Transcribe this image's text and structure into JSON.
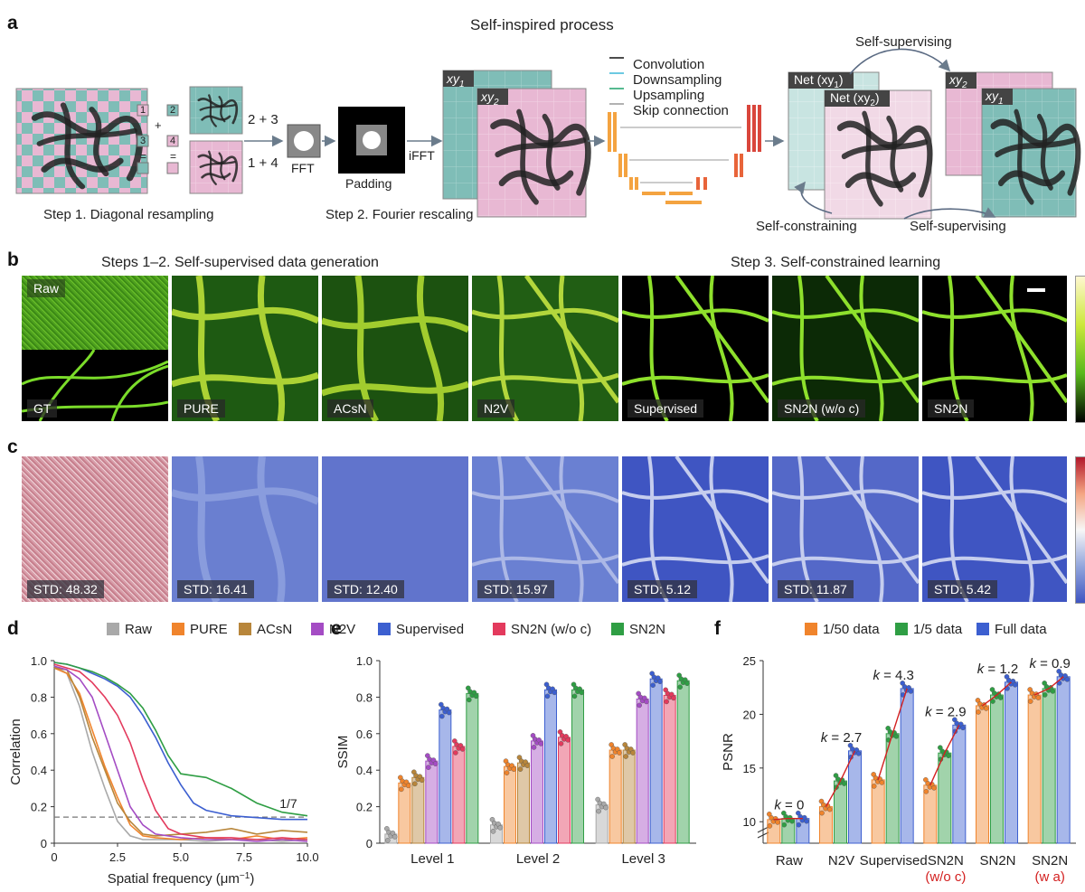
{
  "panel_letters": {
    "a": "a",
    "b": "b",
    "c": "c",
    "d": "d",
    "e": "e",
    "f": "f"
  },
  "panel_a": {
    "title": "Self-inspired process",
    "step1_caption": "Step 1. Diagonal resampling",
    "step2_caption": "Step 2. Fourier rescaling",
    "label_23": "2 + 3",
    "label_14": "1 + 4",
    "fft": "FFT",
    "padding": "Padding",
    "ifft": "iFFT",
    "grid_nums": [
      "1",
      "2",
      "3",
      "4"
    ],
    "plus": "+",
    "eq": "=",
    "xy1": "xy",
    "xy2": "xy",
    "sub1": "1",
    "sub2": "2",
    "net_xy1": "Net (xy",
    "net_xy2": "Net (xy",
    "close_paren": ")",
    "unet_legend": [
      "Convolution",
      "Downsampling",
      "Upsampling",
      "Skip connection"
    ],
    "self_supervising_top": "Self-supervising",
    "self_constraining": "Self-constraining",
    "self_supervising_bottom": "Self-supervising"
  },
  "panel_b": {
    "left_heading": "Steps 1–2. Self-supervised data generation",
    "right_heading": "Step 3. Self-constrained learning",
    "raw_label": "Raw",
    "tiles": [
      "GT",
      "PURE",
      "ACsN",
      "N2V",
      "Supervised",
      "SN2N (w/o c)",
      "SN2N"
    ]
  },
  "panel_c": {
    "std_labels": [
      "STD: 48.32",
      "STD: 16.41",
      "STD: 12.40",
      "STD: 15.97",
      "STD: 5.12",
      "STD: 11.87",
      "STD: 5.42"
    ]
  },
  "legend_methods": [
    {
      "name": "Raw",
      "color": "#a9a9a9"
    },
    {
      "name": "PURE",
      "color": "#f0842c"
    },
    {
      "name": "ACsN",
      "color": "#b8863b"
    },
    {
      "name": "N2V",
      "color": "#a44cc4"
    },
    {
      "name": "Supervised",
      "color": "#3c5fd0"
    },
    {
      "name": "SN2N (w/o c)",
      "color": "#e33a5d"
    },
    {
      "name": "SN2N",
      "color": "#2f9e44"
    }
  ],
  "legend_data": [
    {
      "name": "1/50 data",
      "color": "#f0842c"
    },
    {
      "name": "1/5 data",
      "color": "#2f9e44"
    },
    {
      "name": "Full data",
      "color": "#3c5fd0"
    }
  ],
  "chart_data": [
    {
      "id": "d",
      "type": "line",
      "xlabel": "Spatial frequency  (μm",
      "xlabel_sup": "−1",
      "xlabel_end": ")",
      "ylabel": "Correlation",
      "xlim": [
        0,
        10
      ],
      "ylim": [
        0,
        1
      ],
      "xticks": [
        "0",
        "2.5",
        "5.0",
        "7.5",
        "10.0"
      ],
      "yticks": [
        "0",
        "0.2",
        "0.4",
        "0.6",
        "0.8",
        "1.0"
      ],
      "threshold": 0.143,
      "threshold_label": "1/7",
      "series": [
        {
          "name": "Raw",
          "color": "#a9a9a9",
          "x": [
            0,
            0.5,
            1,
            1.5,
            2,
            2.5,
            3,
            3.5,
            4,
            5,
            6,
            7,
            8,
            9,
            10
          ],
          "y": [
            0.97,
            0.93,
            0.75,
            0.5,
            0.3,
            0.12,
            0.04,
            0.02,
            0.02,
            0.02,
            0.01,
            0.02,
            0.02,
            0.01,
            0.02
          ]
        },
        {
          "name": "PURE",
          "color": "#f0842c",
          "x": [
            0,
            0.5,
            1,
            1.5,
            2,
            2.5,
            3,
            3.5,
            4,
            5,
            6,
            7,
            8,
            9,
            10
          ],
          "y": [
            0.96,
            0.93,
            0.82,
            0.62,
            0.42,
            0.25,
            0.1,
            0.04,
            0.03,
            0.02,
            0.03,
            0.02,
            0.04,
            0.02,
            0.03
          ]
        },
        {
          "name": "ACsN",
          "color": "#b8863b",
          "x": [
            0,
            0.5,
            1,
            1.5,
            2,
            2.5,
            3,
            3.5,
            4,
            5,
            6,
            7,
            8,
            9,
            10
          ],
          "y": [
            0.96,
            0.95,
            0.8,
            0.58,
            0.4,
            0.22,
            0.12,
            0.05,
            0.04,
            0.05,
            0.06,
            0.08,
            0.05,
            0.07,
            0.06
          ]
        },
        {
          "name": "N2V",
          "color": "#a44cc4",
          "x": [
            0,
            0.5,
            1,
            1.5,
            2,
            2.5,
            3,
            3.5,
            4,
            5,
            6,
            7,
            8,
            9,
            10
          ],
          "y": [
            0.97,
            0.95,
            0.9,
            0.8,
            0.6,
            0.4,
            0.2,
            0.1,
            0.05,
            0.03,
            0.02,
            0.02,
            0.01,
            0.02,
            0.01
          ]
        },
        {
          "name": "Supervised",
          "color": "#3c5fd0",
          "x": [
            0,
            0.5,
            1,
            1.5,
            2,
            2.5,
            3,
            3.5,
            4,
            4.5,
            5,
            5.5,
            6,
            7,
            8,
            9,
            10
          ],
          "y": [
            0.99,
            0.98,
            0.96,
            0.93,
            0.9,
            0.86,
            0.8,
            0.7,
            0.58,
            0.44,
            0.32,
            0.22,
            0.18,
            0.15,
            0.14,
            0.13,
            0.13
          ]
        },
        {
          "name": "SN2N (w/o c)",
          "color": "#e33a5d",
          "x": [
            0,
            0.5,
            1,
            1.5,
            2,
            2.5,
            3,
            3.5,
            4,
            4.5,
            5,
            6,
            7,
            8,
            9,
            10
          ],
          "y": [
            0.98,
            0.96,
            0.94,
            0.88,
            0.8,
            0.7,
            0.55,
            0.35,
            0.18,
            0.08,
            0.05,
            0.03,
            0.03,
            0.02,
            0.03,
            0.02
          ]
        },
        {
          "name": "SN2N",
          "color": "#2f9e44",
          "x": [
            0,
            0.5,
            1,
            1.5,
            2,
            2.5,
            3,
            3.5,
            4,
            4.5,
            5,
            5.5,
            6,
            7,
            8,
            9,
            10
          ],
          "y": [
            0.99,
            0.98,
            0.96,
            0.94,
            0.91,
            0.87,
            0.82,
            0.74,
            0.62,
            0.48,
            0.38,
            0.37,
            0.36,
            0.3,
            0.22,
            0.17,
            0.15
          ]
        }
      ]
    },
    {
      "id": "e",
      "type": "bar",
      "ylabel": "SSIM",
      "ylim": [
        0,
        1
      ],
      "yticks": [
        "0",
        "0.2",
        "0.4",
        "0.6",
        "0.8",
        "1.0"
      ],
      "categories": [
        "Level 1",
        "Level 2",
        "Level 3"
      ],
      "series": [
        {
          "name": "Raw",
          "color": "#a9a9a9",
          "values": [
            0.05,
            0.1,
            0.21
          ]
        },
        {
          "name": "PURE",
          "color": "#f0842c",
          "values": [
            0.33,
            0.42,
            0.51
          ]
        },
        {
          "name": "ACsN",
          "color": "#b8863b",
          "values": [
            0.36,
            0.44,
            0.51
          ]
        },
        {
          "name": "N2V",
          "color": "#a44cc4",
          "values": [
            0.45,
            0.56,
            0.79
          ]
        },
        {
          "name": "Supervised",
          "color": "#3c5fd0",
          "values": [
            0.73,
            0.84,
            0.9
          ]
        },
        {
          "name": "SN2N (w/o c)",
          "color": "#e33a5d",
          "values": [
            0.53,
            0.58,
            0.81
          ]
        },
        {
          "name": "SN2N",
          "color": "#2f9e44",
          "values": [
            0.82,
            0.84,
            0.89
          ]
        }
      ]
    },
    {
      "id": "f",
      "type": "bar",
      "ylabel": "PSNR",
      "ylim": [
        8,
        25
      ],
      "yticks": [
        "10",
        "15",
        "20",
        "25"
      ],
      "categories": [
        "Raw",
        "N2V",
        "Supervised",
        "SN2N",
        "SN2N",
        "SN2N"
      ],
      "category_sub": [
        "",
        "",
        "",
        "(w/o c)",
        "",
        "(w a)"
      ],
      "k_labels": [
        "k = 0",
        "k = 2.7",
        "k = 4.3",
        "k = 2.9",
        "k = 1.2",
        "k = 0.9"
      ],
      "series": [
        {
          "name": "1/50 data",
          "color": "#f0842c",
          "values": [
            10.2,
            11.4,
            13.9,
            13.4,
            20.8,
            21.8
          ]
        },
        {
          "name": "1/5 data",
          "color": "#2f9e44",
          "values": [
            10.3,
            13.8,
            18.2,
            16.4,
            21.8,
            22.4
          ]
        },
        {
          "name": "Full data",
          "color": "#3c5fd0",
          "values": [
            10.3,
            16.6,
            22.4,
            19.0,
            23.0,
            23.5
          ]
        }
      ]
    }
  ]
}
